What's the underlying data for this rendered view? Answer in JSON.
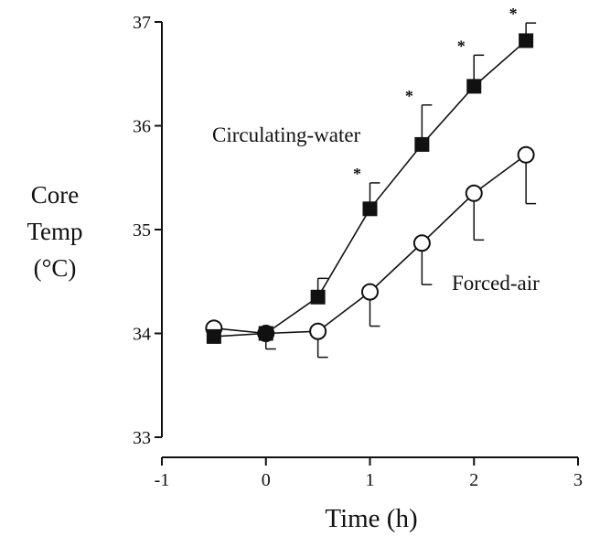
{
  "chart_data": {
    "type": "line",
    "title": "",
    "xlabel": "Time (h)",
    "ylabel_lines": [
      "Core",
      "Temp",
      "(°C)"
    ],
    "xlim": [
      -1,
      3
    ],
    "ylim": [
      33,
      37
    ],
    "x_ticks": [
      -1,
      0,
      1,
      2,
      3
    ],
    "x_tick_labels": [
      "-1",
      "0",
      "1",
      "2",
      "3"
    ],
    "y_ticks": [
      33,
      34,
      35,
      36,
      37
    ],
    "y_tick_labels": [
      "33",
      "34",
      "35",
      "36",
      "37"
    ],
    "grid": false,
    "series": [
      {
        "name": "Circulating-water",
        "marker": "filled-square",
        "color": "#111111",
        "x": [
          -0.5,
          0,
          0.5,
          1,
          1.5,
          2,
          2.5
        ],
        "y": [
          33.97,
          34.0,
          34.35,
          35.2,
          35.82,
          36.38,
          36.82
        ],
        "error_plus": [
          0.0,
          0.0,
          0.18,
          0.25,
          0.38,
          0.3,
          0.17
        ],
        "significant": [
          false,
          false,
          false,
          true,
          true,
          true,
          true
        ],
        "significance_marker": "*"
      },
      {
        "name": "Forced-air",
        "marker": "open-circle",
        "color": "#111111",
        "x": [
          -0.5,
          0,
          0.5,
          1,
          1.5,
          2,
          2.5
        ],
        "y": [
          34.05,
          34.0,
          34.02,
          34.4,
          34.87,
          35.35,
          35.72
        ],
        "error_minus": [
          0.0,
          0.15,
          0.25,
          0.33,
          0.4,
          0.45,
          0.47
        ]
      }
    ]
  }
}
